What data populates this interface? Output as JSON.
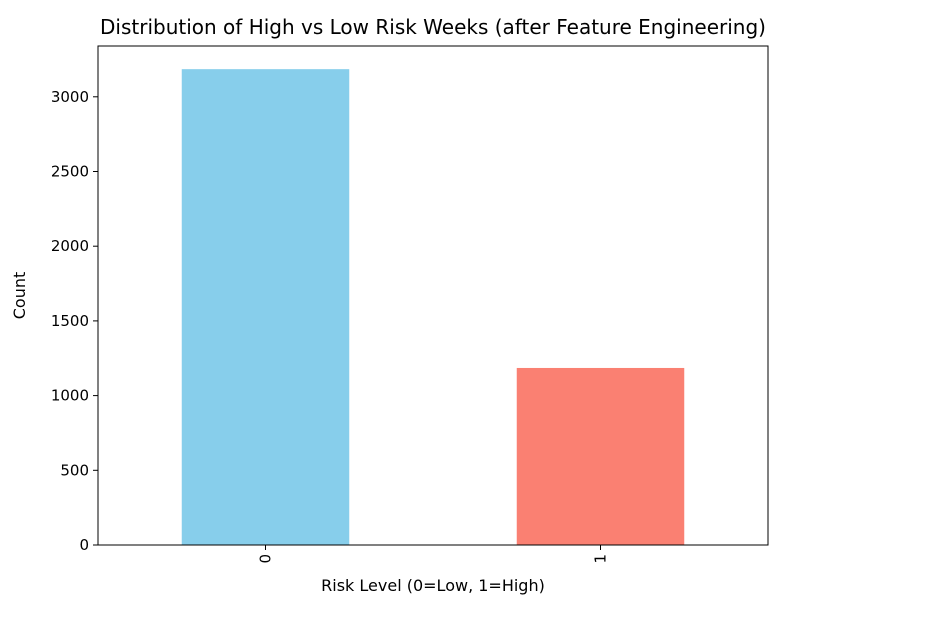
{
  "chart_data": {
    "type": "bar",
    "title": "Distribution of High vs Low Risk Weeks (after Feature Engineering)",
    "xlabel": "Risk Level (0=Low, 1=High)",
    "ylabel": "Count",
    "categories": [
      "0",
      "1"
    ],
    "values": [
      3185,
      1185
    ],
    "bar_colors": [
      "#87ceeb",
      "#fa8072"
    ],
    "ylim": [
      0,
      3340
    ],
    "yticks": [
      0,
      500,
      1000,
      1500,
      2000,
      2500,
      3000
    ],
    "x_tick_rotation": "vertical",
    "grid": false,
    "legend": "none"
  }
}
